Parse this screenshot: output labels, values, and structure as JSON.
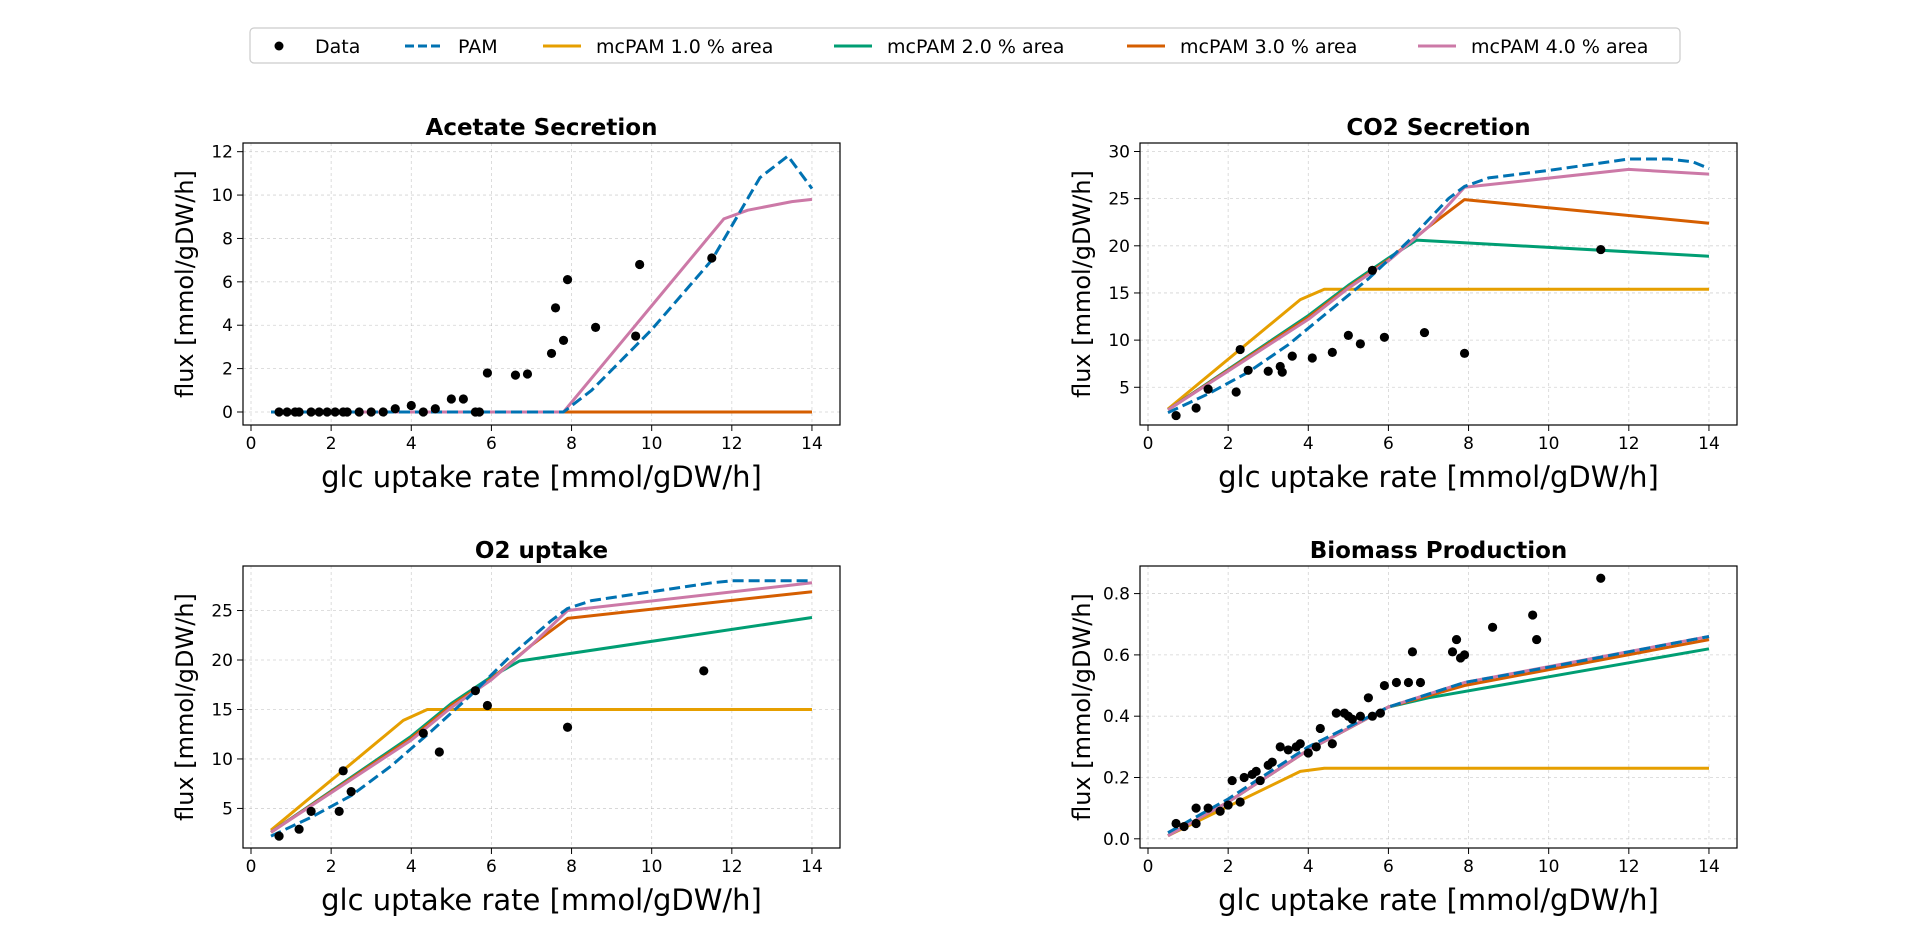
{
  "legend": {
    "entries": [
      {
        "key": "data",
        "label": "Data",
        "kind": "marker",
        "color": "#000000"
      },
      {
        "key": "pam",
        "label": "PAM",
        "kind": "dashed",
        "color": "#0072b2"
      },
      {
        "key": "mc1",
        "label": "mcPAM 1.0 % area",
        "kind": "line",
        "color": "#e69f00"
      },
      {
        "key": "mc2",
        "label": "mcPAM 2.0 % area",
        "kind": "line",
        "color": "#009e73"
      },
      {
        "key": "mc3",
        "label": "mcPAM 3.0 % area",
        "kind": "line",
        "color": "#d55e00"
      },
      {
        "key": "mc4",
        "label": "mcPAM 4.0 % area",
        "kind": "line",
        "color": "#cc79a7"
      }
    ]
  },
  "chart_data": [
    {
      "type": "line",
      "title": "Acetate Secretion",
      "xlabel": "glc uptake rate [mmol/gDW/h]",
      "ylabel": "flux [mmol/gDW/h]",
      "xlim": [
        -0.2,
        14.7
      ],
      "ylim": [
        -0.6,
        12.4
      ],
      "xticks": [
        0,
        2,
        4,
        6,
        8,
        10,
        12,
        14
      ],
      "yticks": [
        0,
        2,
        4,
        6,
        8,
        10,
        12
      ],
      "grid": true,
      "scatter": [
        [
          0.7,
          0
        ],
        [
          0.9,
          0
        ],
        [
          1.1,
          0
        ],
        [
          1.2,
          0
        ],
        [
          1.5,
          0
        ],
        [
          1.7,
          0
        ],
        [
          1.9,
          0
        ],
        [
          2.1,
          0
        ],
        [
          2.3,
          0
        ],
        [
          2.4,
          0
        ],
        [
          2.7,
          0
        ],
        [
          3.0,
          0
        ],
        [
          3.3,
          0
        ],
        [
          3.6,
          0.15
        ],
        [
          4.0,
          0.3
        ],
        [
          4.3,
          0
        ],
        [
          4.6,
          0.15
        ],
        [
          5.0,
          0.6
        ],
        [
          5.3,
          0.6
        ],
        [
          5.6,
          0
        ],
        [
          5.7,
          0
        ],
        [
          5.9,
          1.8
        ],
        [
          6.6,
          1.7
        ],
        [
          6.9,
          1.75
        ],
        [
          7.5,
          2.7
        ],
        [
          7.6,
          4.8
        ],
        [
          7.8,
          3.3
        ],
        [
          7.9,
          6.1
        ],
        [
          8.6,
          3.9
        ],
        [
          9.6,
          3.5
        ],
        [
          9.7,
          6.8
        ],
        [
          11.5,
          7.1
        ]
      ],
      "series": [
        {
          "key": "pam",
          "x": [
            0.5,
            7.8,
            8.5,
            10,
            11.5,
            12.7,
            13.4,
            14.0
          ],
          "y": [
            0,
            0,
            1.0,
            3.8,
            7.0,
            10.8,
            11.8,
            10.3
          ]
        },
        {
          "key": "mc1",
          "x": [
            0.5,
            14.0
          ],
          "y": [
            0,
            0
          ]
        },
        {
          "key": "mc2",
          "x": [
            0.5,
            14.0
          ],
          "y": [
            0,
            0
          ]
        },
        {
          "key": "mc3",
          "x": [
            0.5,
            14.0
          ],
          "y": [
            0,
            0
          ]
        },
        {
          "key": "mc4",
          "x": [
            0.5,
            7.8,
            11.8,
            12.4,
            13.5,
            14.0
          ],
          "y": [
            0,
            0,
            8.9,
            9.3,
            9.7,
            9.8
          ]
        }
      ]
    },
    {
      "type": "line",
      "title": "CO2 Secretion",
      "xlabel": "glc uptake rate [mmol/gDW/h]",
      "ylabel": "flux [mmol/gDW/h]",
      "xlim": [
        -0.2,
        14.7
      ],
      "ylim": [
        1.0,
        30.9
      ],
      "xticks": [
        0,
        2,
        4,
        6,
        8,
        10,
        12,
        14
      ],
      "yticks": [
        5,
        10,
        15,
        20,
        25,
        30
      ],
      "grid": true,
      "scatter": [
        [
          0.7,
          2.0
        ],
        [
          1.2,
          2.8
        ],
        [
          1.5,
          4.8
        ],
        [
          2.2,
          4.5
        ],
        [
          2.3,
          9.0
        ],
        [
          2.5,
          6.8
        ],
        [
          3.0,
          6.7
        ],
        [
          3.3,
          7.2
        ],
        [
          3.35,
          6.6
        ],
        [
          3.6,
          8.3
        ],
        [
          4.1,
          8.1
        ],
        [
          4.6,
          8.7
        ],
        [
          5.0,
          10.5
        ],
        [
          5.3,
          9.6
        ],
        [
          5.6,
          17.4
        ],
        [
          5.9,
          10.3
        ],
        [
          6.9,
          10.8
        ],
        [
          7.9,
          8.6
        ],
        [
          11.3,
          19.6
        ]
      ],
      "series": [
        {
          "key": "pam",
          "x": [
            0.5,
            1.5,
            2.5,
            3.5,
            4.5,
            5.5,
            6.5,
            7.5,
            7.9,
            8.5,
            10.0,
            11.5,
            12.0,
            13.0,
            13.6,
            14.0
          ],
          "y": [
            2.3,
            4.3,
            6.6,
            9.5,
            13.0,
            16.5,
            20.5,
            25.0,
            26.3,
            27.2,
            28.0,
            28.9,
            29.2,
            29.2,
            28.9,
            28.2
          ]
        },
        {
          "key": "mc1",
          "x": [
            0.5,
            3.8,
            4.4,
            14.0
          ],
          "y": [
            2.7,
            14.3,
            15.4,
            15.4
          ]
        },
        {
          "key": "mc2",
          "x": [
            0.5,
            4.0,
            5.0,
            6.0,
            6.7,
            14.0
          ],
          "y": [
            2.6,
            12.6,
            15.8,
            18.7,
            20.6,
            18.9
          ]
        },
        {
          "key": "mc3",
          "x": [
            0.5,
            4.0,
            5.0,
            6.0,
            7.0,
            7.9,
            14.0
          ],
          "y": [
            2.6,
            12.4,
            15.6,
            18.5,
            22.0,
            24.9,
            22.4
          ]
        },
        {
          "key": "mc4",
          "x": [
            0.5,
            4.0,
            5.0,
            6.0,
            7.0,
            7.9,
            12.0,
            14.0
          ],
          "y": [
            2.6,
            12.2,
            15.5,
            18.4,
            22.0,
            26.2,
            28.1,
            27.6
          ]
        }
      ]
    },
    {
      "type": "line",
      "title": "O2 uptake",
      "xlabel": "glc uptake rate [mmol/gDW/h]",
      "ylabel": "flux [mmol/gDW/h]",
      "xlim": [
        -0.2,
        14.7
      ],
      "ylim": [
        1.0,
        29.5
      ],
      "xticks": [
        0,
        2,
        4,
        6,
        8,
        10,
        12,
        14
      ],
      "yticks": [
        5,
        10,
        15,
        20,
        25
      ],
      "grid": true,
      "scatter": [
        [
          0.7,
          2.2
        ],
        [
          1.2,
          2.9
        ],
        [
          1.5,
          4.7
        ],
        [
          2.2,
          4.7
        ],
        [
          2.3,
          8.8
        ],
        [
          2.5,
          6.7
        ],
        [
          4.3,
          12.6
        ],
        [
          4.7,
          10.7
        ],
        [
          5.6,
          16.9
        ],
        [
          5.9,
          15.4
        ],
        [
          7.9,
          13.2
        ],
        [
          11.3,
          18.9
        ]
      ],
      "series": [
        {
          "key": "pam",
          "x": [
            0.5,
            1.5,
            2.5,
            3.5,
            4.5,
            5.5,
            6.5,
            7.5,
            7.9,
            8.5,
            10.0,
            11.5,
            12.0,
            13.0,
            14.0
          ],
          "y": [
            2.2,
            4.1,
            6.3,
            9.3,
            12.8,
            16.5,
            20.5,
            24.0,
            25.2,
            26.0,
            26.9,
            27.8,
            28.0,
            28.0,
            28.0
          ]
        },
        {
          "key": "mc1",
          "x": [
            0.5,
            3.8,
            4.4,
            14.0
          ],
          "y": [
            2.8,
            13.9,
            15.0,
            15.0
          ]
        },
        {
          "key": "mc2",
          "x": [
            0.5,
            4.0,
            5.0,
            6.0,
            6.7,
            14.0
          ],
          "y": [
            2.6,
            12.3,
            15.6,
            18.3,
            19.9,
            24.3
          ]
        },
        {
          "key": "mc3",
          "x": [
            0.5,
            4.0,
            5.0,
            6.0,
            7.0,
            7.9,
            14.0
          ],
          "y": [
            2.6,
            12.1,
            15.4,
            18.1,
            21.5,
            24.2,
            26.9
          ]
        },
        {
          "key": "mc4",
          "x": [
            0.5,
            4.0,
            5.0,
            6.0,
            7.0,
            7.9,
            14.0
          ],
          "y": [
            2.6,
            11.9,
            15.2,
            18.0,
            21.5,
            25.0,
            27.8
          ]
        }
      ]
    },
    {
      "type": "line",
      "title": "Biomass Production",
      "xlabel": "glc uptake rate [mmol/gDW/h]",
      "ylabel": "flux [mmol/gDW/h]",
      "xlim": [
        -0.2,
        14.7
      ],
      "ylim": [
        -0.03,
        0.89
      ],
      "xticks": [
        0,
        2,
        4,
        6,
        8,
        10,
        12,
        14
      ],
      "yticks": [
        0.0,
        0.2,
        0.4,
        0.6,
        0.8
      ],
      "grid": true,
      "scatter": [
        [
          0.7,
          0.05
        ],
        [
          0.9,
          0.04
        ],
        [
          1.2,
          0.1
        ],
        [
          1.2,
          0.05
        ],
        [
          1.5,
          0.1
        ],
        [
          1.8,
          0.09
        ],
        [
          2.0,
          0.11
        ],
        [
          2.1,
          0.19
        ],
        [
          2.3,
          0.12
        ],
        [
          2.4,
          0.2
        ],
        [
          2.6,
          0.21
        ],
        [
          2.7,
          0.22
        ],
        [
          2.8,
          0.19
        ],
        [
          3.0,
          0.24
        ],
        [
          3.1,
          0.25
        ],
        [
          3.3,
          0.3
        ],
        [
          3.5,
          0.29
        ],
        [
          3.7,
          0.3
        ],
        [
          3.8,
          0.31
        ],
        [
          4.0,
          0.28
        ],
        [
          4.2,
          0.3
        ],
        [
          4.3,
          0.36
        ],
        [
          4.6,
          0.31
        ],
        [
          4.7,
          0.41
        ],
        [
          4.9,
          0.41
        ],
        [
          5.0,
          0.4
        ],
        [
          5.1,
          0.39
        ],
        [
          5.3,
          0.4
        ],
        [
          5.5,
          0.46
        ],
        [
          5.6,
          0.4
        ],
        [
          5.8,
          0.41
        ],
        [
          5.9,
          0.5
        ],
        [
          6.2,
          0.51
        ],
        [
          6.5,
          0.51
        ],
        [
          6.6,
          0.61
        ],
        [
          6.8,
          0.51
        ],
        [
          7.6,
          0.61
        ],
        [
          7.7,
          0.65
        ],
        [
          7.8,
          0.59
        ],
        [
          7.9,
          0.6
        ],
        [
          8.6,
          0.69
        ],
        [
          9.6,
          0.73
        ],
        [
          9.7,
          0.65
        ],
        [
          11.3,
          0.85
        ]
      ],
      "series": [
        {
          "key": "pam",
          "x": [
            0.5,
            2.0,
            4.0,
            6.0,
            7.9,
            10.0,
            12.0,
            14.0
          ],
          "y": [
            0.02,
            0.13,
            0.3,
            0.43,
            0.51,
            0.56,
            0.61,
            0.66
          ]
        },
        {
          "key": "mc1",
          "x": [
            0.5,
            3.8,
            4.4,
            14.0
          ],
          "y": [
            0.01,
            0.22,
            0.23,
            0.23
          ]
        },
        {
          "key": "mc2",
          "x": [
            0.5,
            2.0,
            4.0,
            6.0,
            7.0,
            14.0
          ],
          "y": [
            0.01,
            0.12,
            0.29,
            0.43,
            0.46,
            0.62
          ]
        },
        {
          "key": "mc3",
          "x": [
            0.5,
            2.0,
            4.0,
            6.0,
            7.9,
            14.0
          ],
          "y": [
            0.01,
            0.12,
            0.29,
            0.43,
            0.5,
            0.65
          ]
        },
        {
          "key": "mc4",
          "x": [
            0.5,
            2.0,
            4.0,
            6.0,
            7.9,
            14.0
          ],
          "y": [
            0.01,
            0.12,
            0.29,
            0.43,
            0.51,
            0.66
          ]
        }
      ]
    }
  ]
}
